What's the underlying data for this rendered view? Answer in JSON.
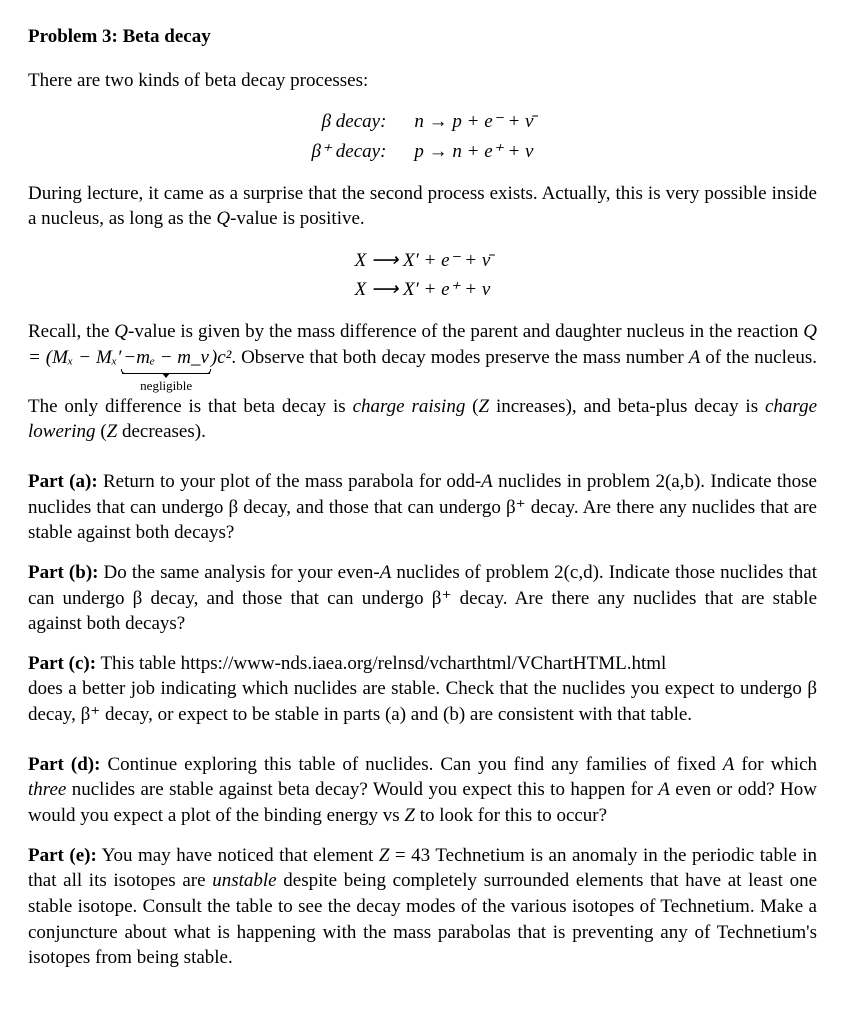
{
  "title": "Problem 3: Beta decay",
  "intro": "There are two kinds of beta decay processes:",
  "eq1": {
    "row1_label": "β decay:",
    "row1_eq": "n → p + e⁻ + ν̄",
    "row2_label": "β⁺ decay:",
    "row2_eq": "p → n + e⁺ + ν"
  },
  "para2_a": "During lecture, it came as a surprise that the second process exists. Actually, this is very possible inside a nucleus, as long as the ",
  "para2_q": "Q",
  "para2_b": "-value is positive.",
  "eq2": {
    "row1": "X  ⟶  X′ + e⁻ + ν̄",
    "row2": "X  ⟶  X′ + e⁺ + ν"
  },
  "para3": {
    "a": "Recall, the ",
    "q": "Q",
    "b": "-value is given by the mass difference of the parent and daughter nucleus in the reaction ",
    "eq_lhs": "Q = (Mₓ − Mₓ′",
    "ub_content": "−mₑ − m_ν",
    "ub_label": "negligible",
    "eq_rhs": ")c²",
    "c": ". Observe that both decay modes preserve the mass number ",
    "A": "A",
    "d": " of the nucleus. The only difference is that beta decay is ",
    "i1": "charge raising",
    "e": " (",
    "Z1": "Z",
    "f": " increases), and beta-plus decay is ",
    "i2": "charge lowering",
    "g": " (",
    "Z2": "Z",
    "h": " decreases)."
  },
  "parts": {
    "a": {
      "label": "Part (a):",
      "pre": " Return to your plot of the mass parabola for odd-",
      "A": "A",
      "post": " nuclides in problem 2(a,b). Indicate those nuclides that can undergo β decay, and those that can undergo β⁺ decay. Are there any nuclides that are stable against both decays?"
    },
    "b": {
      "label": "Part (b):",
      "pre": " Do the same analysis for your even-",
      "A": "A",
      "post": " nuclides of problem 2(c,d). Indicate those nuclides that can undergo β decay, and those that can undergo β⁺ decay. Are there any nuclides that are stable against both decays?"
    },
    "c": {
      "label": "Part (c):",
      "line1": " This table  https://www-nds.iaea.org/relnsd/vcharthtml/VChartHTML.html",
      "line2": "does a better job indicating which nuclides are stable. Check that the nuclides you expect to undergo β decay, β⁺ decay, or expect to be stable in parts (a) and (b) are consistent with that table."
    },
    "d": {
      "label": "Part (d):",
      "a": " Continue exploring this table of nuclides. Can you find any families of fixed ",
      "A1": "A",
      "b": " for which ",
      "i": "three",
      "c": " nuclides are stable against beta decay? Would you expect this to happen for ",
      "A2": "A",
      "d": " even or odd? How would you expect a plot of the binding energy vs ",
      "Z": "Z",
      "e": " to look for this to occur?"
    },
    "e": {
      "label": "Part (e):",
      "a": " You may have noticed that element ",
      "Z": "Z",
      "b": " = 43 Technetium is an anomaly in the periodic table in that all its isotopes are ",
      "i": "unstable",
      "c": " despite being completely surrounded elements that have at least one stable isotope. Consult the table to see the decay modes of the various isotopes of Technetium. Make a conjuncture about what is happening with the mass parabolas that is preventing any of Technetium's isotopes from being stable."
    }
  }
}
